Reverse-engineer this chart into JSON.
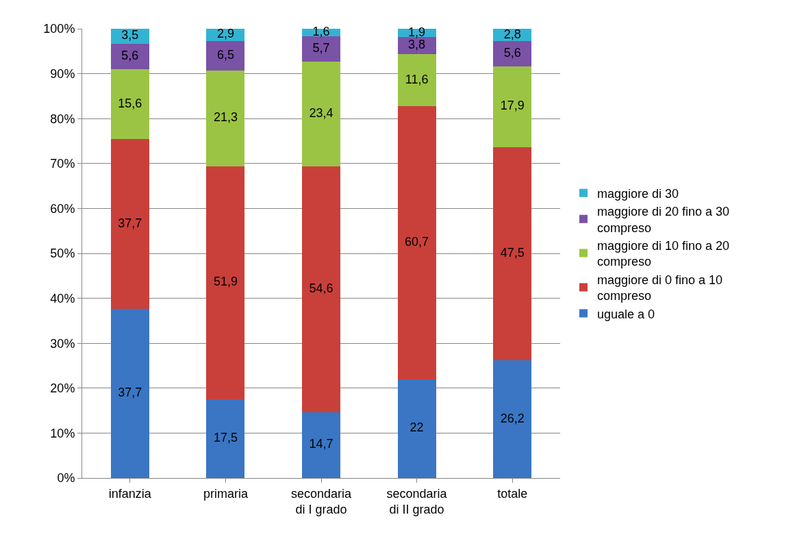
{
  "chart_data": {
    "type": "bar",
    "stacked": true,
    "categories": [
      "infanzia",
      "primaria",
      "secondaria di I grado",
      "secondaria di II grado",
      "totale"
    ],
    "series": [
      {
        "name": "uguale a 0",
        "color": "#3a76c4",
        "values": [
          37.7,
          17.5,
          14.7,
          22,
          26.2
        ],
        "value_labels": [
          "37,7",
          "17,5",
          "14,7",
          "22",
          "26,2"
        ]
      },
      {
        "name": "maggiore di 0 fino a 10 compreso",
        "color": "#c9403b",
        "values": [
          37.7,
          51.9,
          54.6,
          60.7,
          47.5
        ],
        "value_labels": [
          "37,7",
          "51,9",
          "54,6",
          "60,7",
          "47,5"
        ]
      },
      {
        "name": "maggiore di 10 fino a 20 compreso",
        "color": "#9bc444",
        "values": [
          15.6,
          21.3,
          23.4,
          11.6,
          17.9
        ],
        "value_labels": [
          "15,6",
          "21,3",
          "23,4",
          "11,6",
          "17,9"
        ]
      },
      {
        "name": "maggiore di 20 fino a 30 compreso",
        "color": "#7a52a6",
        "values": [
          5.6,
          6.5,
          5.7,
          3.8,
          5.6
        ],
        "value_labels": [
          "5,6",
          "6,5",
          "5,7",
          "3,8",
          "5,6"
        ]
      },
      {
        "name": "maggiore di 30",
        "color": "#33b3d3",
        "values": [
          3.5,
          2.9,
          1.6,
          1.9,
          2.8
        ],
        "value_labels": [
          "3,5",
          "2,9",
          "1,6",
          "1,9",
          "2,8"
        ]
      }
    ],
    "ylim": [
      0,
      100
    ],
    "yticks": [
      {
        "value": 0,
        "label": "0%"
      },
      {
        "value": 10,
        "label": "10%"
      },
      {
        "value": 20,
        "label": "20%"
      },
      {
        "value": 30,
        "label": "30%"
      },
      {
        "value": 40,
        "label": "40%"
      },
      {
        "value": 50,
        "label": "50%"
      },
      {
        "value": 60,
        "label": "60%"
      },
      {
        "value": 70,
        "label": "70%"
      },
      {
        "value": 80,
        "label": "80%"
      },
      {
        "value": 90,
        "label": "90%"
      },
      {
        "value": 100,
        "label": "100%"
      }
    ],
    "grid": "y",
    "legend": "right"
  }
}
